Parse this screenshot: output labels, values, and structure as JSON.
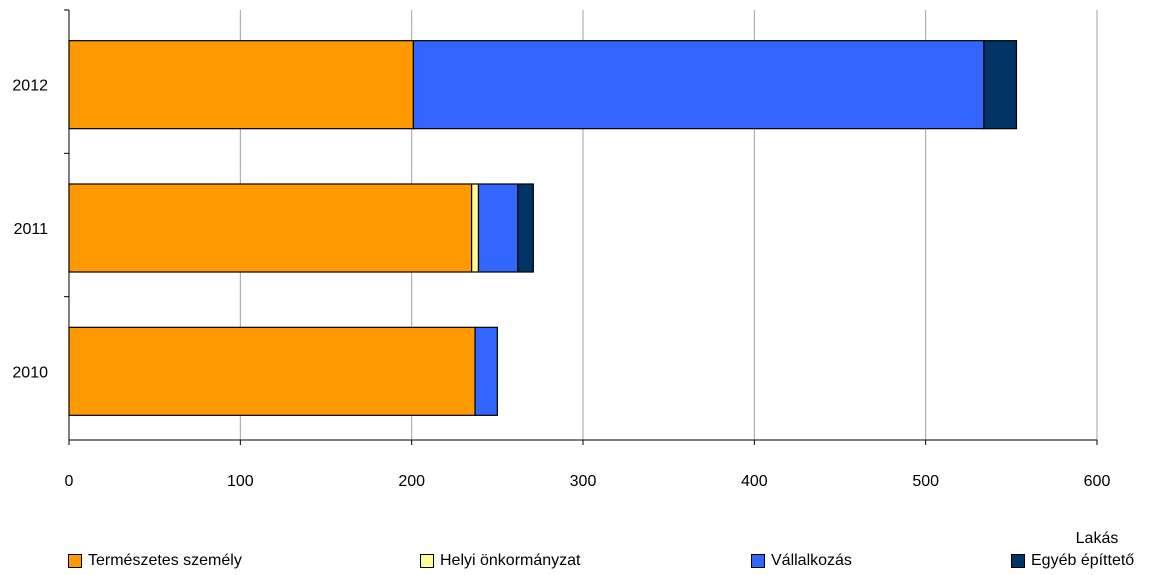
{
  "chart_data": {
    "type": "bar",
    "orientation": "horizontal",
    "stacked": true,
    "categories": [
      "2010",
      "2011",
      "2012"
    ],
    "series": [
      {
        "name": "Természetes személy",
        "color": "#FF9900",
        "values": [
          237,
          235,
          201
        ]
      },
      {
        "name": "Helyi önkormányzat",
        "color": "#FFFF99",
        "values": [
          0,
          4,
          0
        ]
      },
      {
        "name": "Vállalkozás",
        "color": "#3366FF",
        "values": [
          13,
          23,
          333
        ]
      },
      {
        "name": "Egyéb építtető",
        "color": "#003366",
        "values": [
          0,
          9,
          19
        ]
      }
    ],
    "xlim": [
      0,
      600
    ],
    "x_ticks": [
      "0",
      "100",
      "200",
      "300",
      "400",
      "500",
      "600"
    ],
    "xlabel": "Lakás",
    "grid": "vertical",
    "legend": "bottom"
  }
}
